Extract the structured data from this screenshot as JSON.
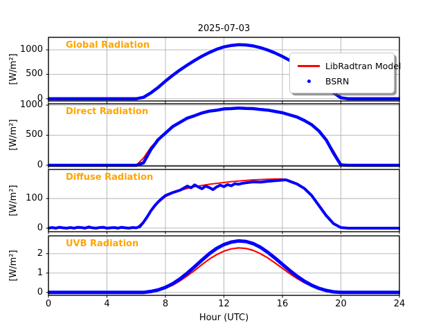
{
  "chart_data": {
    "type": "line",
    "title": "2025-07-03",
    "xlabel": "Hour (UTC)",
    "xlim": [
      0,
      24
    ],
    "x_ticks": [
      0,
      4,
      8,
      12,
      16,
      20,
      24
    ],
    "grid": true,
    "colors": {
      "model": "#ff0000",
      "bsrn": "#0000ff",
      "panel_label": "#FFA500",
      "grid": "#b0b0b0",
      "frame": "#000000",
      "background": "#ffffff"
    },
    "legend": {
      "position": "upper right of first panel",
      "items": [
        {
          "label": "LibRadtran Model",
          "color": "#ff0000",
          "marker": "line"
        },
        {
          "label": "BSRN",
          "color": "#0000ff",
          "marker": "dot"
        }
      ]
    },
    "x_half_hour": [
      0,
      0.5,
      1,
      1.5,
      2,
      2.5,
      3,
      3.5,
      4,
      4.5,
      5,
      5.5,
      6,
      6.5,
      7,
      7.5,
      8,
      8.5,
      9,
      9.5,
      10,
      10.5,
      11,
      11.5,
      12,
      12.5,
      13,
      13.5,
      14,
      14.5,
      15,
      15.5,
      16,
      16.5,
      17,
      17.5,
      18,
      18.5,
      19,
      19.5,
      20,
      20.5,
      21,
      21.5,
      22,
      22.5,
      23,
      23.5,
      24
    ],
    "panels": [
      {
        "label": "Global Radiation",
        "ylabel": "[W/m²]",
        "yticks": [
          0,
          500,
          1000
        ],
        "ylim": [
          -45,
          1255
        ],
        "series": [
          {
            "name": "LibRadtran Model",
            "color": "#ff0000",
            "width": 2,
            "x_ref": "x_half_hour",
            "y": [
              0,
              0,
              0,
              0,
              0,
              0,
              0,
              0,
              0,
              0,
              0,
              0,
              0,
              30,
              120,
              230,
              360,
              480,
              590,
              690,
              785,
              870,
              945,
              1010,
              1060,
              1090,
              1105,
              1100,
              1080,
              1045,
              995,
              935,
              865,
              785,
              695,
              595,
              485,
              365,
              240,
              120,
              20,
              0,
              0,
              0,
              0,
              0,
              0,
              0,
              0
            ]
          },
          {
            "name": "BSRN",
            "color": "#0000ff",
            "width": 4.5,
            "x_ref": "x_half_hour",
            "y": [
              0,
              0,
              0,
              0,
              0,
              0,
              0,
              0,
              0,
              0,
              0,
              0,
              0,
              30,
              120,
              230,
              360,
              480,
              590,
              690,
              785,
              870,
              945,
              1010,
              1060,
              1090,
              1105,
              1100,
              1080,
              1045,
              995,
              935,
              865,
              785,
              695,
              595,
              485,
              365,
              240,
              120,
              20,
              0,
              0,
              0,
              0,
              0,
              0,
              0,
              0
            ]
          }
        ]
      },
      {
        "label": "Direct Radiation",
        "ylabel": "[W/m²]",
        "yticks": [
          0,
          500,
          1000
        ],
        "ylim": [
          -12,
          1023
        ],
        "series": [
          {
            "name": "LibRadtran Model",
            "color": "#ff0000",
            "width": 2,
            "x_ref": "x_half_hour",
            "y": [
              0,
              0,
              0,
              0,
              0,
              0,
              0,
              0,
              0,
              0,
              0,
              0,
              0,
              120,
              300,
              430,
              530,
              640,
              720,
              780,
              830,
              868,
              898,
              918,
              935,
              945,
              950,
              948,
              940,
              930,
              915,
              897,
              872,
              840,
              800,
              748,
              678,
              575,
              430,
              240,
              25,
              0,
              0,
              0,
              0,
              0,
              0,
              0,
              0
            ]
          },
          {
            "name": "BSRN",
            "color": "#0000ff",
            "width": 4.5,
            "x_ref": "x_half_hour",
            "y": [
              0,
              0,
              0,
              0,
              0,
              0,
              0,
              0,
              0,
              0,
              0,
              0,
              0,
              40,
              260,
              425,
              535,
              645,
              715,
              785,
              825,
              870,
              900,
              915,
              938,
              942,
              952,
              945,
              942,
              928,
              917,
              895,
              874,
              838,
              802,
              745,
              675,
              570,
              420,
              200,
              5,
              0,
              0,
              0,
              0,
              0,
              0,
              0,
              0
            ]
          }
        ]
      },
      {
        "label": "Diffuse Radiation",
        "ylabel": "[W/m²]",
        "yticks": [
          0,
          100
        ],
        "ylim": [
          -12,
          198
        ],
        "series": [
          {
            "name": "LibRadtran Model",
            "color": "#ff0000",
            "width": 2,
            "x_ref": "x_half_hour",
            "y": [
              0,
              0,
              0,
              0,
              0,
              0,
              0,
              0,
              0,
              0,
              0,
              0,
              0,
              22,
              55,
              85,
              106,
              118,
              127,
              134,
              140,
              144,
              148,
              151,
              154,
              157,
              159,
              161,
              163,
              164,
              165,
              166,
              166,
              161,
              151,
              136,
              113,
              80,
              46,
              18,
              3,
              0,
              0,
              0,
              0,
              0,
              0,
              0,
              0
            ]
          },
          {
            "name": "BSRN",
            "color": "#0000ff",
            "width": 4,
            "x": [
              0,
              0.25,
              0.5,
              0.75,
              1,
              1.25,
              1.5,
              1.75,
              2,
              2.25,
              2.5,
              2.75,
              3,
              3.25,
              3.5,
              3.75,
              4,
              4.25,
              4.5,
              4.75,
              5,
              5.25,
              5.5,
              5.75,
              6,
              6.25,
              6.5,
              6.75,
              7,
              7.25,
              7.5,
              7.75,
              8,
              8.5,
              9,
              9.25,
              9.5,
              9.75,
              10,
              10.25,
              10.5,
              10.75,
              11,
              11.25,
              11.5,
              11.75,
              12,
              12.25,
              12.5,
              12.75,
              13,
              13.25,
              13.5,
              14,
              14.5,
              15,
              15.5,
              16,
              16.25,
              16.5,
              17,
              17.5,
              18,
              18.5,
              19,
              19.5,
              20,
              20.5,
              21,
              21.5,
              22,
              22.5,
              23,
              23.5,
              24
            ],
            "y": [
              0,
              2,
              0,
              3,
              1,
              0,
              2,
              0,
              3,
              2,
              0,
              4,
              1,
              0,
              2,
              3,
              0,
              1,
              2,
              0,
              3,
              1,
              0,
              2,
              1,
              5,
              20,
              38,
              58,
              75,
              88,
              100,
              110,
              120,
              128,
              135,
              142,
              136,
              146,
              139,
              133,
              142,
              137,
              130,
              139,
              145,
              140,
              147,
              143,
              150,
              148,
              151,
              153,
              156,
              155,
              158,
              160,
              162,
              163,
              158,
              149,
              134,
              110,
              76,
              42,
              15,
              2,
              0,
              0,
              0,
              0,
              0,
              0,
              0,
              0
            ]
          }
        ]
      },
      {
        "label": "UVB Radiation",
        "ylabel": "[W/m²]",
        "yticks": [
          0,
          1,
          2
        ],
        "ylim": [
          -0.15,
          2.92
        ],
        "series": [
          {
            "name": "LibRadtran Model",
            "color": "#ff0000",
            "width": 2.2,
            "x_ref": "x_half_hour",
            "y": [
              0,
              0,
              0,
              0,
              0,
              0,
              0,
              0,
              0,
              0,
              0,
              0,
              0,
              0,
              0.04,
              0.11,
              0.22,
              0.38,
              0.6,
              0.86,
              1.14,
              1.44,
              1.72,
              1.95,
              2.13,
              2.25,
              2.3,
              2.27,
              2.17,
              2.0,
              1.78,
              1.52,
              1.25,
              0.97,
              0.72,
              0.5,
              0.32,
              0.18,
              0.08,
              0.02,
              0,
              0,
              0,
              0,
              0,
              0,
              0,
              0,
              0
            ]
          },
          {
            "name": "BSRN",
            "color": "#0000ff",
            "width": 5,
            "x_ref": "x_half_hour",
            "y": [
              0,
              0,
              0,
              0,
              0,
              0,
              0,
              0,
              0,
              0,
              0,
              0,
              0,
              0,
              0.05,
              0.13,
              0.26,
              0.45,
              0.7,
              1.0,
              1.33,
              1.67,
              2.0,
              2.27,
              2.47,
              2.6,
              2.66,
              2.63,
              2.52,
              2.33,
              2.07,
              1.77,
              1.45,
              1.13,
              0.84,
              0.58,
              0.37,
              0.21,
              0.1,
              0.03,
              0,
              0,
              0,
              0,
              0,
              0,
              0,
              0,
              0
            ]
          }
        ]
      }
    ]
  }
}
